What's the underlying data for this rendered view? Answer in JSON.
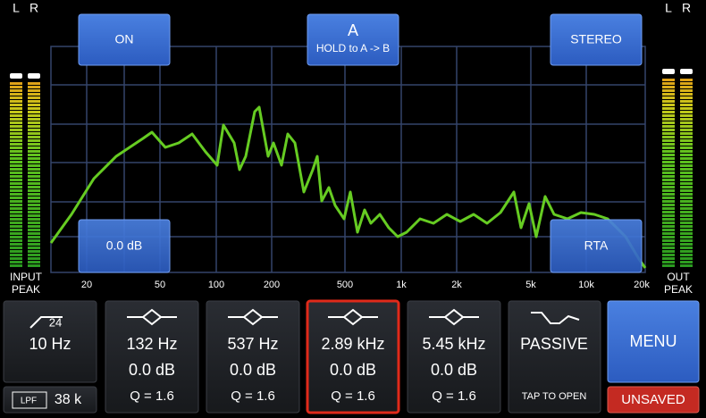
{
  "input_meter": {
    "channels": [
      "L",
      "R"
    ],
    "label": [
      "INPUT",
      "PEAK"
    ]
  },
  "output_meter": {
    "channels": [
      "L",
      "R"
    ],
    "label": [
      "OUT",
      "PEAK"
    ]
  },
  "buttons": {
    "on": "ON",
    "ab": {
      "title": "A",
      "subtitle": "HOLD to A -> B"
    },
    "stereo": "STEREO",
    "gain": "0.0 dB",
    "rta": "RTA"
  },
  "freq_axis": [
    "20",
    "50",
    "100",
    "200",
    "500",
    "1k",
    "2k",
    "5k",
    "10k",
    "20k"
  ],
  "filter": {
    "slope": "24",
    "frequency": "10 Hz",
    "type": "LPF",
    "value": "38 k"
  },
  "bands": [
    {
      "frequency": "132 Hz",
      "gain": "0.0 dB",
      "q": "Q = 1.6"
    },
    {
      "frequency": "537 Hz",
      "gain": "0.0 dB",
      "q": "Q = 1.6"
    },
    {
      "frequency": "2.89 kHz",
      "gain": "0.0 dB",
      "q": "Q = 1.6"
    },
    {
      "frequency": "5.45 kHz",
      "gain": "0.0 dB",
      "q": "Q = 1.6"
    }
  ],
  "mode": {
    "title": "PASSIVE",
    "hint": "TAP TO OPEN"
  },
  "menu": "MENU",
  "status": "UNSAVED"
}
